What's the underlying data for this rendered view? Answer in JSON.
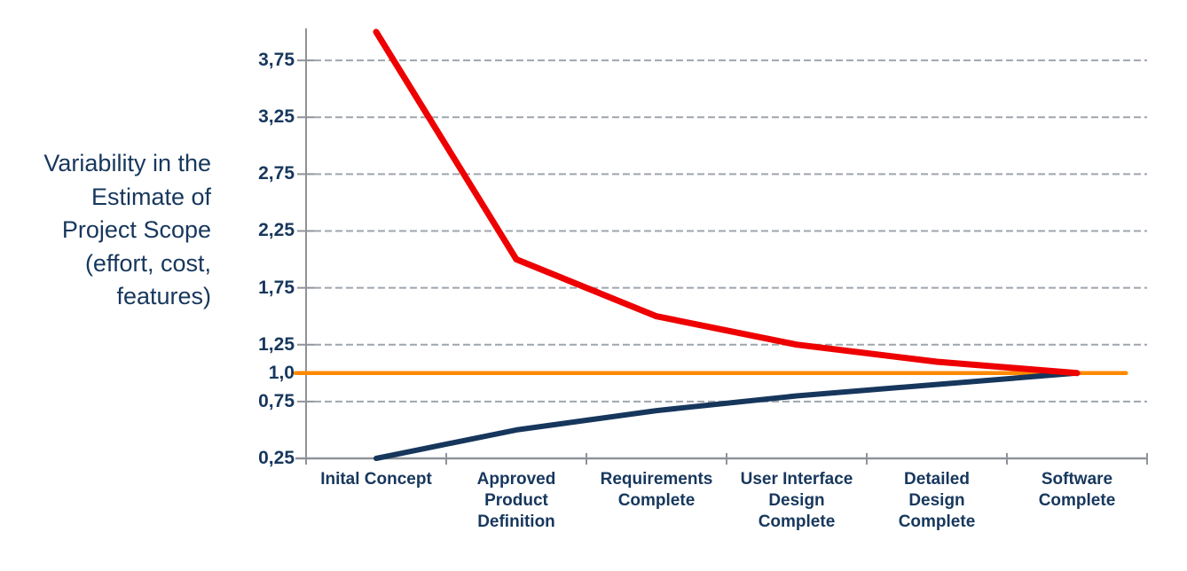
{
  "side_label": {
    "lines": [
      "Variability in the",
      "Estimate of",
      "Project Scope",
      "(effort, cost,",
      "features)"
    ]
  },
  "chart_data": {
    "type": "line",
    "title": "",
    "xlabel": "",
    "ylabel": "Variability in the Estimate of Project Scope (effort, cost, features)",
    "categories": [
      "Inital Concept",
      "Approved Product Definition",
      "Requirements Complete",
      "User Interface Design Complete",
      "Detailed Design Complete",
      "Software Complete"
    ],
    "category_label_lines": [
      [
        "Inital Concept"
      ],
      [
        "Approved",
        "Product",
        "Definition"
      ],
      [
        "Requirements",
        "Complete"
      ],
      [
        "User Interface",
        "Design",
        "Complete"
      ],
      [
        "Detailed",
        "Design",
        "Complete"
      ],
      [
        "Software",
        "Complete"
      ]
    ],
    "series": [
      {
        "name": "target-baseline",
        "color": "#FF8A00",
        "width": 4.5,
        "full_width_baseline": true,
        "values": [
          1.0,
          1.0,
          1.0,
          1.0,
          1.0,
          1.0
        ]
      },
      {
        "name": "lower-estimate-bound",
        "color": "#16365C",
        "width": 6,
        "values": [
          0.25,
          0.5,
          0.67,
          0.8,
          0.9,
          1.0
        ]
      },
      {
        "name": "upper-estimate-bound",
        "color": "#EE0000",
        "width": 7,
        "values": [
          4.0,
          2.0,
          1.5,
          1.25,
          1.1,
          1.0
        ]
      }
    ],
    "y_ticks": [
      {
        "value": 3.75,
        "label": "3,75",
        "gridline": true
      },
      {
        "value": 3.25,
        "label": "3,25",
        "gridline": true
      },
      {
        "value": 2.75,
        "label": "2,75",
        "gridline": true
      },
      {
        "value": 2.25,
        "label": "2,25",
        "gridline": true
      },
      {
        "value": 1.75,
        "label": "1,75",
        "gridline": true
      },
      {
        "value": 1.25,
        "label": "1,25",
        "gridline": true
      },
      {
        "value": 1.0,
        "label": "1,0",
        "gridline": false
      },
      {
        "value": 0.75,
        "label": "0,75",
        "gridline": true
      },
      {
        "value": 0.25,
        "label": "0,25",
        "gridline": false
      }
    ],
    "ylim": [
      0.25,
      4.0
    ],
    "grid": "horizontal-dashed",
    "legend": "none",
    "colors": {
      "gridline": "#9FA5AD",
      "axis": "#8F9399",
      "text": "#17375D"
    }
  }
}
